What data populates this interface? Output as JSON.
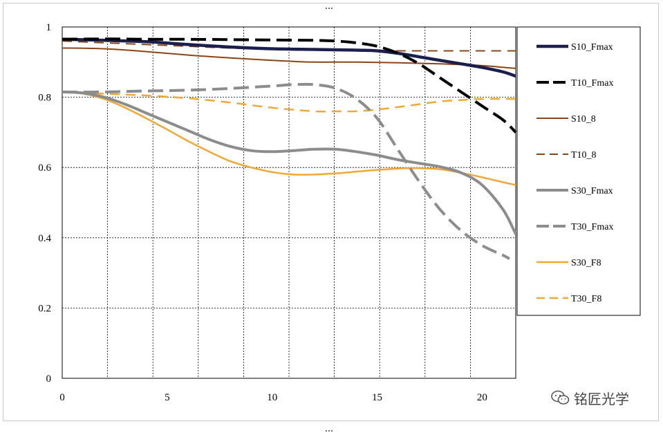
{
  "chart_data": {
    "type": "line",
    "title": "",
    "xlabel": "",
    "ylabel": "",
    "xlim": [
      0,
      21.6
    ],
    "ylim": [
      0,
      1
    ],
    "x_ticks": [
      0,
      5,
      10,
      15,
      20
    ],
    "x_tick_labels": [
      "0",
      "5",
      "10",
      "15",
      "20"
    ],
    "y_ticks": [
      0,
      0.2,
      0.4,
      0.6,
      0.8,
      1
    ],
    "y_tick_labels": [
      "0",
      "0.2",
      "0.4",
      "0.6",
      "0.8",
      "1"
    ],
    "x_grid": [
      2.16,
      4.32,
      6.48,
      8.64,
      10.8,
      12.96,
      15.12,
      17.28,
      19.44
    ],
    "grid": true,
    "legend_position": "right",
    "series": [
      {
        "name": "S10_Fmax",
        "color": "#1a1f4e",
        "dash": "solid",
        "width": 4.5,
        "points": [
          [
            0,
            0.965
          ],
          [
            2,
            0.962
          ],
          [
            4,
            0.958
          ],
          [
            6,
            0.95
          ],
          [
            8,
            0.943
          ],
          [
            10,
            0.938
          ],
          [
            12,
            0.936
          ],
          [
            14,
            0.934
          ],
          [
            15,
            0.932
          ],
          [
            16,
            0.925
          ],
          [
            17,
            0.915
          ],
          [
            18,
            0.905
          ],
          [
            19,
            0.895
          ],
          [
            20,
            0.885
          ],
          [
            21,
            0.872
          ],
          [
            21.6,
            0.86
          ]
        ]
      },
      {
        "name": "T10_Fmax",
        "color": "#000000",
        "dash": "long",
        "width": 4,
        "points": [
          [
            0,
            0.965
          ],
          [
            2,
            0.966
          ],
          [
            4,
            0.965
          ],
          [
            6,
            0.965
          ],
          [
            8,
            0.964
          ],
          [
            10,
            0.963
          ],
          [
            12,
            0.962
          ],
          [
            13,
            0.96
          ],
          [
            14,
            0.955
          ],
          [
            15,
            0.945
          ],
          [
            16,
            0.925
          ],
          [
            17,
            0.895
          ],
          [
            18,
            0.855
          ],
          [
            19,
            0.815
          ],
          [
            20,
            0.775
          ],
          [
            21,
            0.735
          ],
          [
            21.6,
            0.7
          ]
        ]
      },
      {
        "name": "S10_8",
        "color": "#8b4513",
        "dash": "solid",
        "width": 2,
        "points": [
          [
            0,
            0.94
          ],
          [
            2,
            0.938
          ],
          [
            4,
            0.93
          ],
          [
            6,
            0.92
          ],
          [
            8,
            0.912
          ],
          [
            10,
            0.905
          ],
          [
            11,
            0.902
          ],
          [
            12,
            0.9
          ],
          [
            14,
            0.9
          ],
          [
            16,
            0.898
          ],
          [
            18,
            0.895
          ],
          [
            20,
            0.89
          ],
          [
            21,
            0.885
          ],
          [
            21.6,
            0.882
          ]
        ]
      },
      {
        "name": "T10_8",
        "color": "#8b4513",
        "dash": "medium",
        "width": 2,
        "points": [
          [
            0,
            0.96
          ],
          [
            2,
            0.955
          ],
          [
            4,
            0.95
          ],
          [
            6,
            0.945
          ],
          [
            8,
            0.94
          ],
          [
            10,
            0.937
          ],
          [
            12,
            0.935
          ],
          [
            14,
            0.933
          ],
          [
            16,
            0.932
          ],
          [
            18,
            0.932
          ],
          [
            20,
            0.932
          ],
          [
            21.6,
            0.932
          ]
        ]
      },
      {
        "name": "S30_Fmax",
        "color": "#8c8c8c",
        "dash": "solid",
        "width": 4,
        "points": [
          [
            0,
            0.815
          ],
          [
            1,
            0.812
          ],
          [
            2,
            0.8
          ],
          [
            3,
            0.78
          ],
          [
            4,
            0.755
          ],
          [
            5,
            0.73
          ],
          [
            6,
            0.705
          ],
          [
            7,
            0.68
          ],
          [
            8,
            0.66
          ],
          [
            9,
            0.648
          ],
          [
            10,
            0.645
          ],
          [
            11,
            0.648
          ],
          [
            12,
            0.652
          ],
          [
            13,
            0.652
          ],
          [
            14,
            0.645
          ],
          [
            15,
            0.635
          ],
          [
            16,
            0.622
          ],
          [
            17,
            0.612
          ],
          [
            18,
            0.602
          ],
          [
            19,
            0.585
          ],
          [
            20,
            0.55
          ],
          [
            21,
            0.48
          ],
          [
            21.6,
            0.41
          ]
        ]
      },
      {
        "name": "T30_Fmax",
        "color": "#8c8c8c",
        "dash": "long",
        "width": 4,
        "points": [
          [
            0,
            0.815
          ],
          [
            2,
            0.815
          ],
          [
            4,
            0.818
          ],
          [
            6,
            0.82
          ],
          [
            8,
            0.825
          ],
          [
            10,
            0.832
          ],
          [
            11,
            0.836
          ],
          [
            12,
            0.836
          ],
          [
            13,
            0.826
          ],
          [
            14,
            0.796
          ],
          [
            15,
            0.74
          ],
          [
            16,
            0.65
          ],
          [
            17,
            0.56
          ],
          [
            18,
            0.48
          ],
          [
            19,
            0.42
          ],
          [
            20,
            0.378
          ],
          [
            21,
            0.35
          ],
          [
            21.3,
            0.34
          ]
        ]
      },
      {
        "name": "S30_F8",
        "color": "#f0a830",
        "dash": "solid",
        "width": 2.5,
        "points": [
          [
            0,
            0.815
          ],
          [
            1,
            0.81
          ],
          [
            2,
            0.795
          ],
          [
            3,
            0.77
          ],
          [
            4,
            0.74
          ],
          [
            5,
            0.708
          ],
          [
            6,
            0.675
          ],
          [
            7,
            0.645
          ],
          [
            8,
            0.618
          ],
          [
            9,
            0.6
          ],
          [
            10,
            0.587
          ],
          [
            11,
            0.58
          ],
          [
            12,
            0.58
          ],
          [
            13,
            0.583
          ],
          [
            14,
            0.588
          ],
          [
            15,
            0.593
          ],
          [
            16,
            0.597
          ],
          [
            17,
            0.598
          ],
          [
            18,
            0.595
          ],
          [
            19,
            0.585
          ],
          [
            20,
            0.572
          ],
          [
            21,
            0.558
          ],
          [
            21.6,
            0.55
          ]
        ]
      },
      {
        "name": "T30_F8",
        "color": "#f0a830",
        "dash": "medium",
        "width": 2.5,
        "points": [
          [
            0,
            0.815
          ],
          [
            2,
            0.81
          ],
          [
            4,
            0.805
          ],
          [
            6,
            0.797
          ],
          [
            8,
            0.785
          ],
          [
            10,
            0.77
          ],
          [
            12,
            0.76
          ],
          [
            13,
            0.76
          ],
          [
            14,
            0.76
          ],
          [
            15,
            0.765
          ],
          [
            16,
            0.772
          ],
          [
            17,
            0.78
          ],
          [
            18,
            0.788
          ],
          [
            19,
            0.792
          ],
          [
            20,
            0.795
          ],
          [
            21.6,
            0.795
          ]
        ]
      }
    ]
  },
  "watermark": {
    "text": "铭匠光学",
    "icon": "wechat-icon"
  }
}
